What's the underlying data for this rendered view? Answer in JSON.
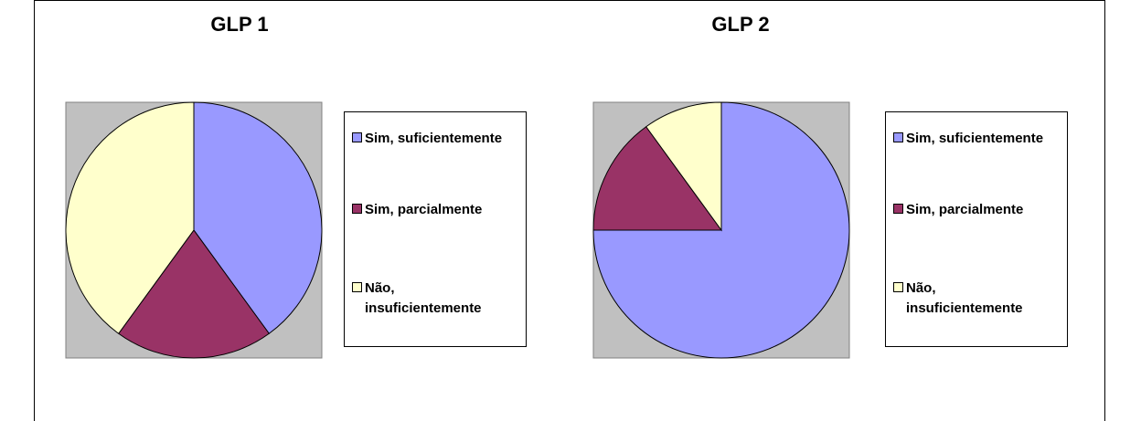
{
  "chart_data": [
    {
      "type": "pie",
      "title": "GLP 1",
      "categories": [
        "Sim, suficientemente",
        "Sim, parcialmente",
        "Não, insuficientemente"
      ],
      "values": [
        40,
        20,
        40
      ],
      "colors": [
        "#9999ff",
        "#993366",
        "#ffffcc"
      ],
      "legend": "right"
    },
    {
      "type": "pie",
      "title": "GLP 2",
      "categories": [
        "Sim, suficientemente",
        "Sim, parcialmente",
        "Não, insuficientemente"
      ],
      "values": [
        75,
        15,
        10
      ],
      "colors": [
        "#9999ff",
        "#993366",
        "#ffffcc"
      ],
      "legend": "right"
    }
  ]
}
